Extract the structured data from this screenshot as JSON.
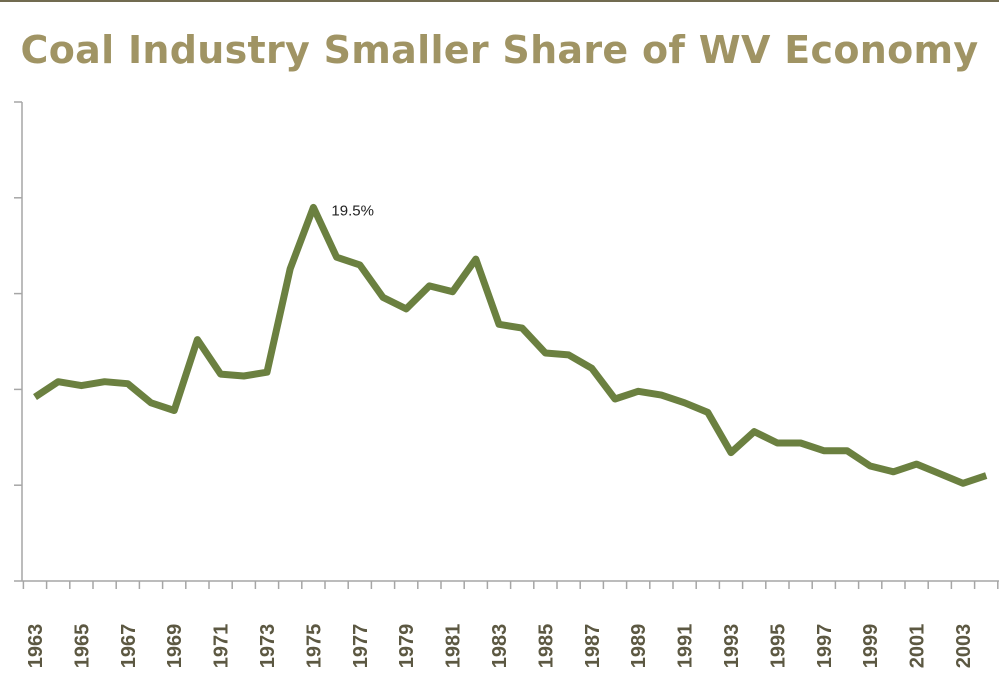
{
  "chart_data": {
    "type": "line",
    "title": "Coal Industry Smaller Share of WV Economy",
    "xlabel": "",
    "ylabel": "",
    "ylim": [
      0,
      25
    ],
    "y_tick_step": 5,
    "y_tick_labels_shown": false,
    "grid": false,
    "legend": "none",
    "line_color": "#6b8040",
    "title_color": "#a09464",
    "x": [
      1963,
      1964,
      1965,
      1966,
      1967,
      1968,
      1969,
      1970,
      1971,
      1972,
      1973,
      1974,
      1975,
      1976,
      1977,
      1978,
      1979,
      1980,
      1981,
      1982,
      1983,
      1984,
      1985,
      1986,
      1987,
      1988,
      1989,
      1990,
      1991,
      1992,
      1993,
      1994,
      1995,
      1996,
      1997,
      1998,
      1999,
      2000,
      2001,
      2002,
      2003,
      2004
    ],
    "x_tick_labels": [
      "1963",
      "1965",
      "1967",
      "1969",
      "1971",
      "1973",
      "1975",
      "1977",
      "1979",
      "1981",
      "1983",
      "1985",
      "1987",
      "1989",
      "1991",
      "1993",
      "1995",
      "1997",
      "1999",
      "2001",
      "2003"
    ],
    "series": [
      {
        "values": [
          9.6,
          10.4,
          10.2,
          10.4,
          10.3,
          9.3,
          8.9,
          12.6,
          10.8,
          10.7,
          10.9,
          16.3,
          19.5,
          16.9,
          16.5,
          14.8,
          14.2,
          15.4,
          15.1,
          16.8,
          13.4,
          13.2,
          11.9,
          11.8,
          11.1,
          9.5,
          9.9,
          9.7,
          9.3,
          8.8,
          6.7,
          7.8,
          7.2,
          7.2,
          6.8,
          6.8,
          6.0,
          5.7,
          6.1,
          5.6,
          5.1,
          5.5
        ]
      }
    ],
    "annotations": [
      {
        "x": 1975,
        "text": "19.5%"
      }
    ]
  }
}
